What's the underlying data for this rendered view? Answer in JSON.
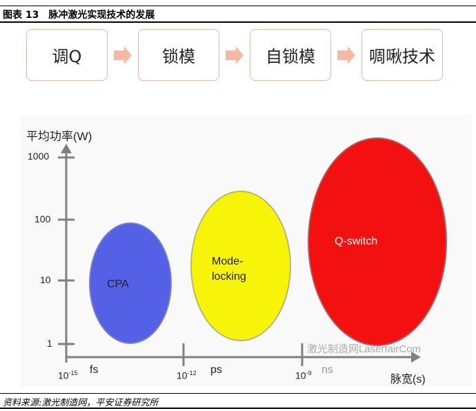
{
  "header": {
    "title": "图表 13　脉冲激光实现技术的发展"
  },
  "flow": {
    "steps": [
      "调Q",
      "锁模",
      "自锁模",
      "啁啾技术"
    ],
    "arrow_color": "#f3b9a3",
    "border_color": "#e2b9a4"
  },
  "chart": {
    "ylabel": "平均功率(W)",
    "xlabel": "脉宽(s)",
    "yticks": [
      "1000",
      "100",
      "10",
      "1"
    ],
    "xticks": [
      {
        "base": "10",
        "exp": "-15",
        "unit": "fs"
      },
      {
        "base": "10",
        "exp": "-12",
        "unit": "ps"
      },
      {
        "base": "10",
        "exp": "-9",
        "unit": "ns"
      }
    ],
    "regions": [
      {
        "label": "CPA",
        "color": "#5460e6"
      },
      {
        "label": "Mode-\nlocking",
        "line1": "Mode-",
        "line2": "locking",
        "color": "#f7f40a"
      },
      {
        "label": "Q-switch",
        "color": "#f21010"
      }
    ],
    "watermark": "激光制造网LaserfairCom"
  },
  "footer": {
    "source": "资料来源:激光制造网，平安证券研究所"
  }
}
